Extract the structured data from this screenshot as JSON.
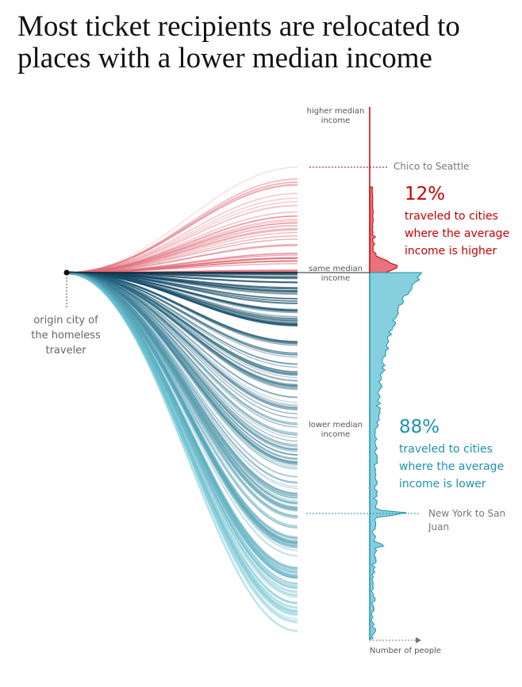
{
  "title": "Most ticket recipients are relocated to places with a lower median income",
  "axis_labels": {
    "top": "higher median income",
    "middle": "same median income",
    "bottom": "lower median income",
    "x": "Number of people"
  },
  "origin_label": "origin city of the homeless traveler",
  "higher": {
    "percent": "12%",
    "text": "traveled to cities where the average income is higher",
    "route": "Chico to Seattle"
  },
  "lower": {
    "percent": "88%",
    "text": "traveled to cities where the average income is lower",
    "route": "New York to San Juan"
  }
}
